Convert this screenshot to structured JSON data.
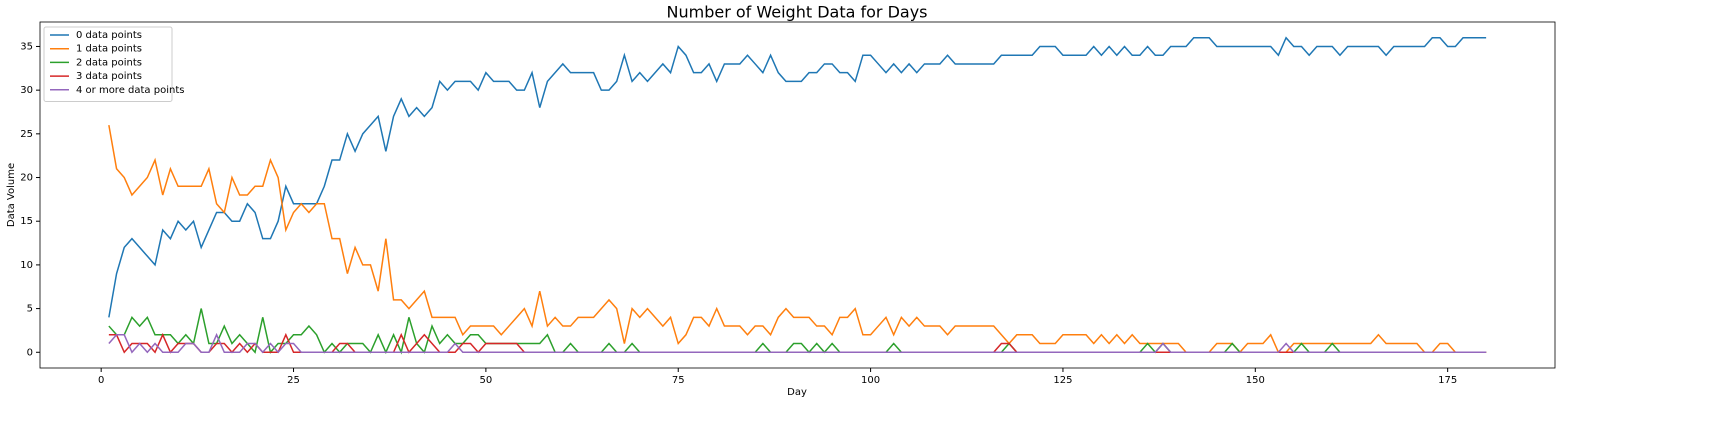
{
  "chart_data": {
    "type": "line",
    "title": "Number of Weight Data for Days",
    "x_label": "Day",
    "y_label": "Data Volume",
    "x": [
      1,
      2,
      3,
      4,
      5,
      6,
      7,
      8,
      9,
      10,
      11,
      12,
      13,
      14,
      15,
      16,
      17,
      18,
      19,
      20,
      21,
      22,
      23,
      24,
      25,
      26,
      27,
      28,
      29,
      30,
      31,
      32,
      33,
      34,
      35,
      36,
      37,
      38,
      39,
      40,
      41,
      42,
      43,
      44,
      45,
      46,
      47,
      48,
      49,
      50,
      51,
      52,
      53,
      54,
      55,
      56,
      57,
      58,
      59,
      60,
      61,
      62,
      63,
      64,
      65,
      66,
      67,
      68,
      69,
      70,
      71,
      72,
      73,
      74,
      75,
      76,
      77,
      78,
      79,
      80,
      81,
      82,
      83,
      84,
      85,
      86,
      87,
      88,
      89,
      90,
      91,
      92,
      93,
      94,
      95,
      96,
      97,
      98,
      99,
      100,
      101,
      102,
      103,
      104,
      105,
      106,
      107,
      108,
      109,
      110,
      111,
      112,
      113,
      114,
      115,
      116,
      117,
      118,
      119,
      120,
      121,
      122,
      123,
      124,
      125,
      126,
      127,
      128,
      129,
      130,
      131,
      132,
      133,
      134,
      135,
      136,
      137,
      138,
      139,
      140,
      141,
      142,
      143,
      144,
      145,
      146,
      147,
      148,
      149,
      150,
      151,
      152,
      153,
      154,
      155,
      156,
      157,
      158,
      159,
      160,
      161,
      162,
      163,
      164,
      165,
      166,
      167,
      168,
      169,
      170,
      171,
      172,
      173,
      174,
      175,
      176,
      177,
      178,
      179,
      180
    ],
    "series": [
      {
        "name": "0 data points",
        "color": "#1f77b4",
        "values": [
          4,
          9,
          12,
          13,
          12,
          11,
          10,
          14,
          13,
          15,
          14,
          15,
          12,
          14,
          16,
          16,
          15,
          15,
          17,
          16,
          13,
          13,
          15,
          19,
          17,
          17,
          17,
          17,
          19,
          22,
          22,
          25,
          23,
          25,
          26,
          27,
          23,
          27,
          29,
          27,
          28,
          27,
          28,
          31,
          30,
          31,
          31,
          31,
          30,
          32,
          31,
          31,
          31,
          30,
          30,
          32,
          28,
          31,
          32,
          33,
          32,
          32,
          32,
          32,
          30,
          30,
          31,
          34,
          31,
          32,
          31,
          32,
          33,
          32,
          35,
          34,
          32,
          32,
          33,
          31,
          33,
          33,
          33,
          34,
          33,
          32,
          34,
          32,
          31,
          31,
          31,
          32,
          32,
          33,
          33,
          32,
          32,
          31,
          34,
          34,
          33,
          32,
          33,
          32,
          33,
          32,
          33,
          33,
          33,
          34,
          33,
          33,
          33,
          33,
          33,
          33,
          34,
          34,
          34,
          34,
          34,
          35,
          35,
          35,
          34,
          34,
          34,
          34,
          35,
          34,
          35,
          34,
          35,
          34,
          34,
          35,
          34,
          34,
          35,
          35,
          35,
          36,
          36,
          36,
          35,
          35,
          35,
          35,
          35,
          35,
          35,
          35,
          34,
          36,
          35,
          35,
          34,
          35,
          35,
          35,
          34,
          35,
          35,
          35,
          35,
          35,
          34,
          35,
          35,
          35,
          35,
          35,
          36,
          36,
          35,
          35,
          36,
          36,
          36,
          36
        ]
      },
      {
        "name": "1 data points",
        "color": "#ff7f0e",
        "values": [
          26,
          21,
          20,
          18,
          19,
          20,
          22,
          18,
          21,
          19,
          19,
          19,
          19,
          21,
          17,
          16,
          20,
          18,
          18,
          19,
          19,
          22,
          20,
          14,
          16,
          17,
          16,
          17,
          17,
          13,
          13,
          9,
          12,
          10,
          10,
          7,
          13,
          6,
          6,
          5,
          6,
          7,
          4,
          4,
          4,
          4,
          2,
          3,
          3,
          3,
          3,
          2,
          3,
          4,
          5,
          3,
          7,
          3,
          4,
          3,
          3,
          4,
          4,
          4,
          5,
          6,
          5,
          1,
          5,
          4,
          5,
          4,
          3,
          4,
          1,
          2,
          4,
          4,
          3,
          5,
          3,
          3,
          3,
          2,
          3,
          3,
          2,
          4,
          5,
          4,
          4,
          4,
          3,
          3,
          2,
          4,
          4,
          5,
          2,
          2,
          3,
          4,
          2,
          4,
          3,
          4,
          3,
          3,
          3,
          2,
          3,
          3,
          3,
          3,
          3,
          3,
          2,
          1,
          2,
          2,
          2,
          1,
          1,
          1,
          2,
          2,
          2,
          2,
          1,
          2,
          1,
          2,
          1,
          2,
          1,
          1,
          1,
          1,
          1,
          1,
          0,
          0,
          0,
          0,
          1,
          1,
          1,
          0,
          1,
          1,
          1,
          2,
          0,
          0,
          1,
          1,
          1,
          1,
          1,
          1,
          1,
          1,
          1,
          1,
          1,
          2,
          1,
          1,
          1,
          1,
          1,
          0,
          0,
          1,
          1,
          0,
          0,
          0,
          0,
          0
        ]
      },
      {
        "name": "2 data points",
        "color": "#2ca02c",
        "values": [
          3,
          2,
          2,
          4,
          3,
          4,
          2,
          2,
          2,
          1,
          2,
          1,
          5,
          1,
          1,
          3,
          1,
          2,
          1,
          0,
          4,
          0,
          1,
          1,
          2,
          2,
          3,
          2,
          0,
          1,
          0,
          1,
          1,
          1,
          0,
          2,
          0,
          2,
          0,
          4,
          1,
          0,
          3,
          1,
          2,
          1,
          1,
          2,
          2,
          1,
          1,
          1,
          1,
          1,
          1,
          1,
          1,
          2,
          0,
          0,
          1,
          0,
          0,
          0,
          0,
          1,
          0,
          0,
          1,
          0,
          0,
          0,
          0,
          0,
          0,
          0,
          0,
          0,
          0,
          0,
          0,
          0,
          0,
          0,
          0,
          1,
          0,
          0,
          0,
          1,
          1,
          0,
          1,
          0,
          1,
          0,
          0,
          0,
          0,
          0,
          0,
          0,
          1,
          0,
          0,
          0,
          0,
          0,
          0,
          0,
          0,
          0,
          0,
          0,
          0,
          0,
          0,
          1,
          0,
          0,
          0,
          0,
          0,
          0,
          0,
          0,
          0,
          0,
          0,
          0,
          0,
          0,
          0,
          0,
          0,
          1,
          0,
          1,
          0,
          0,
          0,
          0,
          0,
          0,
          0,
          0,
          1,
          0,
          0,
          0,
          0,
          0,
          0,
          0,
          0,
          1,
          0,
          0,
          0,
          1,
          0,
          0,
          0,
          0,
          0,
          0,
          0,
          0,
          0,
          0,
          0,
          0,
          0,
          0,
          0,
          0,
          0,
          0,
          0,
          0
        ]
      },
      {
        "name": "3 data points",
        "color": "#d62728",
        "values": [
          2,
          2,
          0,
          1,
          1,
          1,
          0,
          2,
          0,
          1,
          1,
          1,
          0,
          0,
          1,
          1,
          0,
          1,
          0,
          1,
          0,
          0,
          0,
          2,
          0,
          0,
          0,
          0,
          0,
          0,
          1,
          1,
          0,
          0,
          0,
          0,
          0,
          0,
          2,
          0,
          1,
          2,
          1,
          0,
          0,
          0,
          1,
          1,
          0,
          1,
          1,
          1,
          1,
          1,
          0,
          0,
          0,
          0,
          0,
          0,
          0,
          0,
          0,
          0,
          0,
          0,
          0,
          0,
          0,
          0,
          0,
          0,
          0,
          0,
          0,
          0,
          0,
          0,
          0,
          0,
          0,
          0,
          0,
          0,
          0,
          0,
          0,
          0,
          0,
          0,
          0,
          0,
          0,
          0,
          0,
          0,
          0,
          0,
          0,
          0,
          0,
          0,
          0,
          0,
          0,
          0,
          0,
          0,
          0,
          0,
          0,
          0,
          0,
          0,
          0,
          0,
          1,
          1,
          0,
          0,
          0,
          0,
          0,
          0,
          0,
          0,
          0,
          0,
          0,
          0,
          0,
          0,
          0,
          0,
          0,
          0,
          0,
          0,
          0,
          0,
          0,
          0,
          0,
          0,
          0,
          0,
          0,
          0,
          0,
          0,
          0,
          0,
          0,
          0,
          0,
          0,
          0,
          0,
          0,
          0,
          0,
          0,
          0,
          0,
          0,
          0,
          0,
          0,
          0,
          0,
          0,
          0,
          0,
          0,
          0,
          0,
          0,
          0,
          0,
          0
        ]
      },
      {
        "name": "4 or more data points",
        "color": "#9467bd",
        "values": [
          1,
          2,
          2,
          0,
          1,
          0,
          1,
          0,
          0,
          0,
          1,
          1,
          0,
          0,
          2,
          0,
          0,
          0,
          1,
          1,
          0,
          1,
          0,
          1,
          1,
          0,
          0,
          0,
          0,
          0,
          0,
          0,
          0,
          0,
          0,
          0,
          0,
          0,
          0,
          0,
          0,
          0,
          0,
          0,
          0,
          1,
          0,
          0,
          0,
          0,
          0,
          0,
          0,
          0,
          0,
          0,
          0,
          0,
          0,
          0,
          0,
          0,
          0,
          0,
          0,
          0,
          0,
          0,
          0,
          0,
          0,
          0,
          0,
          0,
          0,
          0,
          0,
          0,
          0,
          0,
          0,
          0,
          0,
          0,
          0,
          0,
          0,
          0,
          0,
          0,
          0,
          0,
          0,
          0,
          0,
          0,
          0,
          0,
          0,
          0,
          0,
          0,
          0,
          0,
          0,
          0,
          0,
          0,
          0,
          0,
          0,
          0,
          0,
          0,
          0,
          0,
          0,
          0,
          0,
          0,
          0,
          0,
          0,
          0,
          0,
          0,
          0,
          0,
          0,
          0,
          0,
          0,
          0,
          0,
          0,
          0,
          0,
          1,
          0,
          0,
          0,
          0,
          0,
          0,
          0,
          0,
          0,
          0,
          0,
          0,
          0,
          0,
          0,
          1,
          0,
          0,
          0,
          0,
          0,
          0,
          0,
          0,
          0,
          0,
          0,
          0,
          0,
          0,
          0,
          0,
          0,
          0,
          0,
          0,
          0,
          0,
          0,
          0,
          0,
          0
        ]
      }
    ],
    "xlim": [
      -7.95,
      188.95
    ],
    "xticks": [
      0,
      25,
      50,
      75,
      100,
      125,
      150,
      175
    ],
    "ylim": [
      -1.8,
      37.8
    ],
    "yticks": [
      0,
      5,
      10,
      15,
      20,
      25,
      30,
      35
    ],
    "legend": "upper left"
  }
}
